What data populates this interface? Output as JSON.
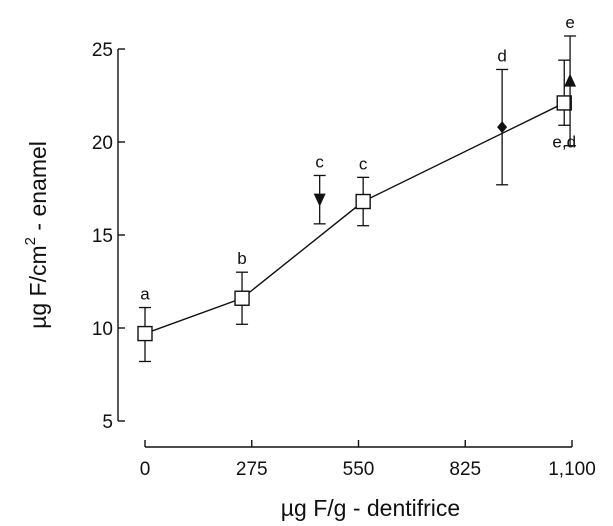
{
  "chart_data": {
    "type": "scatter",
    "title": "",
    "xlabel": "µg F/g - dentifrice",
    "ylabel_main": "µg F/cm",
    "ylabel_sup": "2",
    "ylabel_tail": " - enamel",
    "xlim": [
      0,
      1100
    ],
    "ylim": [
      5,
      25
    ],
    "x_ticks": [
      {
        "value": 0,
        "label": "0"
      },
      {
        "value": 275,
        "label": "275"
      },
      {
        "value": 550,
        "label": "550"
      },
      {
        "value": 825,
        "label": "825"
      },
      {
        "value": 1100,
        "label": "1,100"
      }
    ],
    "y_ticks": [
      {
        "value": 5,
        "label": "5"
      },
      {
        "value": 10,
        "label": "10"
      },
      {
        "value": 15,
        "label": "15"
      },
      {
        "value": 20,
        "label": "20"
      },
      {
        "value": 25,
        "label": "25"
      }
    ],
    "grid": false,
    "series": [
      {
        "marker": "open-square",
        "connected": true,
        "points": [
          {
            "x": 0,
            "y": 9.7,
            "err_low": 8.2,
            "err_high": 11.1,
            "label": "a"
          },
          {
            "x": 250,
            "y": 11.6,
            "err_low": 10.2,
            "err_high": 13.0,
            "label": "b"
          },
          {
            "x": 562,
            "y": 16.8,
            "err_low": 15.5,
            "err_high": 18.1,
            "label": "c"
          },
          {
            "x": 1080,
            "y": 22.1,
            "err_low": 20.9,
            "err_high": 24.4,
            "label": "e,d"
          }
        ]
      },
      {
        "marker": "triangle-down",
        "connected": false,
        "points": [
          {
            "x": 450,
            "y": 16.9,
            "err_low": 15.6,
            "err_high": 18.2,
            "label": "c"
          }
        ]
      },
      {
        "marker": "diamond",
        "connected": false,
        "points": [
          {
            "x": 920,
            "y": 20.8,
            "err_low": 17.7,
            "err_high": 23.9,
            "label": "d"
          }
        ]
      },
      {
        "marker": "triangle-up",
        "connected": false,
        "points": [
          {
            "x": 1095,
            "y": 23.3,
            "err_low": 19.8,
            "err_high": 25.7,
            "label": "e"
          }
        ]
      }
    ]
  }
}
